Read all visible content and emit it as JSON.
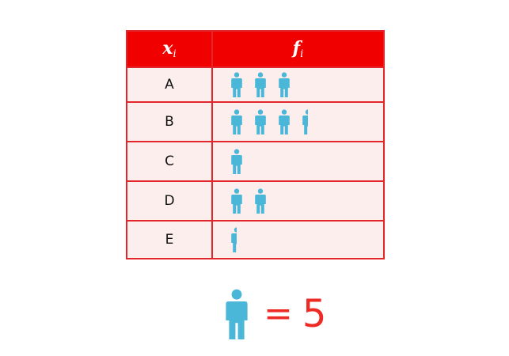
{
  "table": {
    "header_x": "x",
    "header_x_sub": "i",
    "header_f": "f",
    "header_f_sub": "i"
  },
  "legend": {
    "equals": "=",
    "value": "5"
  },
  "chart_data": {
    "type": "table",
    "columns": [
      "xi",
      "fi"
    ],
    "icon": "person-icon",
    "icon_color": "#4ab6d8",
    "icon_value": 5,
    "rows": [
      {
        "category": "A",
        "icons": 3,
        "value": 15
      },
      {
        "category": "B",
        "icons": 3.5,
        "value": 17.5
      },
      {
        "category": "C",
        "icons": 1,
        "value": 5
      },
      {
        "category": "D",
        "icons": 2,
        "value": 10
      },
      {
        "category": "E",
        "icons": 0.5,
        "value": 2.5
      }
    ]
  }
}
